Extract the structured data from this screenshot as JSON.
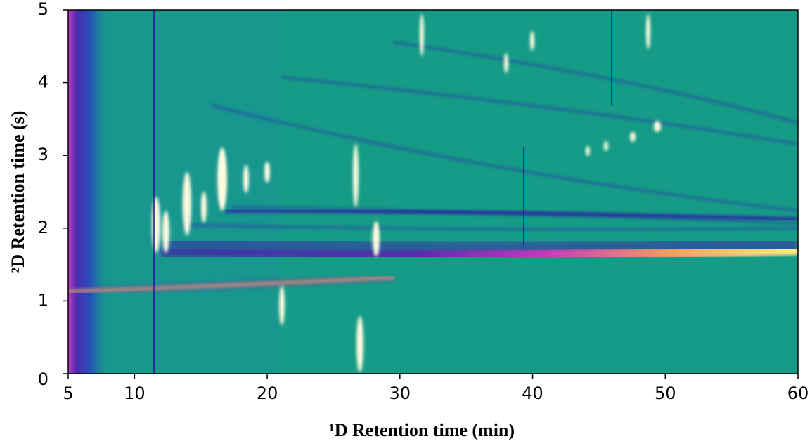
{
  "chart_data": {
    "type": "heatmap",
    "x_label": "¹D Retention time (min)",
    "y_label": "²D Retention time (s)",
    "xlim": [
      5,
      60
    ],
    "xticks": [
      5,
      10,
      20,
      30,
      40,
      50,
      60
    ],
    "ylim": [
      0,
      5
    ],
    "yticks": [
      0,
      1,
      2,
      3,
      4,
      5
    ]
  }
}
